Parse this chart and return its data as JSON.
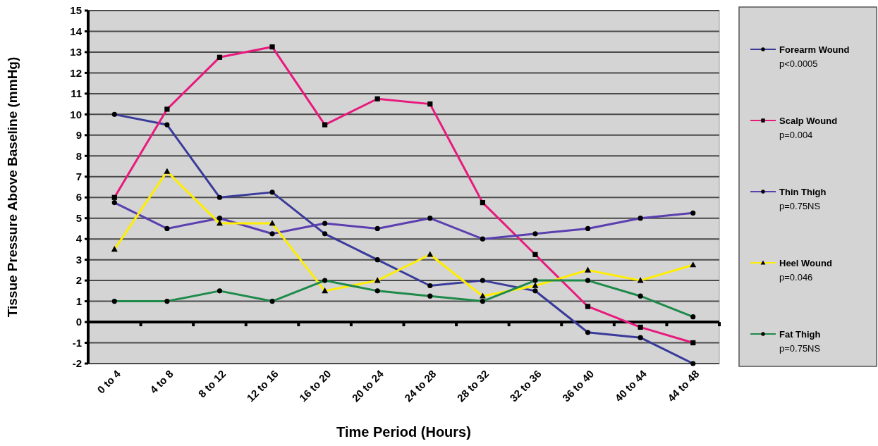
{
  "chart_data": {
    "type": "line",
    "xlabel": "Time Period (Hours)",
    "ylabel": "Tissue Pressure Above Baseline (mmHg)",
    "categories": [
      "0 to 4",
      "4 to 8",
      "8 to 12",
      "12 to 16",
      "16 to 20",
      "20 to 24",
      "24 to 28",
      "28 to 32",
      "32 to 36",
      "36 to 40",
      "40 to 44",
      "44 to 48"
    ],
    "ylim": [
      -2,
      15
    ],
    "yticks": [
      -2,
      -1,
      0,
      1,
      2,
      3,
      4,
      5,
      6,
      7,
      8,
      9,
      10,
      11,
      12,
      13,
      14,
      15
    ],
    "grid": "y",
    "legend": "right",
    "line_style": "solid",
    "series": [
      {
        "name": "Forearm Wound\np<0.0005",
        "color": "#3a3a9a",
        "marker": "circle",
        "values": [
          10,
          9.5,
          6,
          6.25,
          4.25,
          3,
          1.75,
          2,
          1.5,
          -0.5,
          -0.75,
          -2
        ]
      },
      {
        "name": "Scalp Wound\np=0.004",
        "color": "#e8197d",
        "marker": "square",
        "values": [
          6,
          10.25,
          12.75,
          13.25,
          9.5,
          10.75,
          10.5,
          5.75,
          3.25,
          0.75,
          -0.25,
          -1
        ]
      },
      {
        "name": "Thin Thigh\np=0.75NS",
        "color": "#5b3fb0",
        "marker": "circle",
        "values": [
          5.75,
          4.5,
          5,
          4.25,
          4.75,
          4.5,
          5,
          4,
          4.25,
          4.5,
          5,
          5.25
        ]
      },
      {
        "name": "Heel Wound\np=0.046",
        "color": "#ffee00",
        "marker": "triangle",
        "values": [
          3.5,
          7.25,
          4.75,
          4.75,
          1.5,
          2,
          3.25,
          1.25,
          1.75,
          2.5,
          2,
          2.75
        ]
      },
      {
        "name": "Fat Thigh\np=0.75NS",
        "color": "#1e8a4a",
        "marker": "circle",
        "values": [
          1,
          1,
          1.5,
          1,
          2,
          1.5,
          1.25,
          1,
          2,
          2,
          1.25,
          0.25
        ]
      }
    ]
  }
}
